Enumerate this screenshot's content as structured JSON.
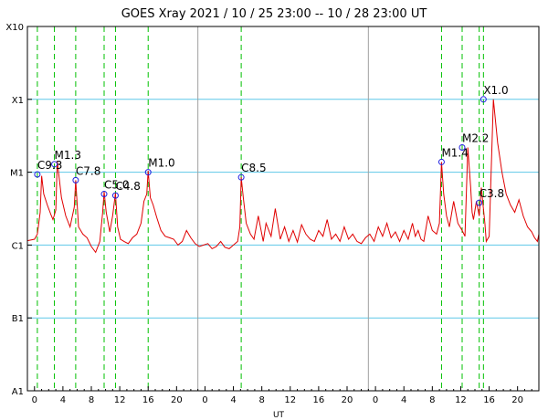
{
  "chart_data": {
    "type": "line",
    "title": "GOES Xray   2021 / 10 / 25   23:00 -- 10 / 28   23:00   UT",
    "xlabel": "UT",
    "ylabel": "",
    "x_tick_labels": [
      "0",
      "4",
      "8",
      "12",
      "16",
      "20",
      "0",
      "4",
      "8",
      "12",
      "16",
      "20",
      "0",
      "4",
      "8",
      "12",
      "16",
      "20"
    ],
    "x_range_hours": [
      -1,
      71
    ],
    "day_boundaries_hours": [
      23,
      47
    ],
    "y_tick_labels": [
      "X10",
      "X1",
      "M1",
      "C1",
      "B1",
      "A1"
    ],
    "y_scale": "log",
    "ylim_class": [
      "A1",
      "X10"
    ],
    "grid": true,
    "series": [
      {
        "x": [
          -1,
          0,
          0.4,
          0.8,
          1.0,
          1.3,
          1.8,
          2.3,
          2.6,
          3.0,
          3.2,
          3.8,
          4.4,
          5.0,
          5.6,
          5.8,
          6.2,
          6.8,
          7.4,
          8.0,
          8.6,
          9.2,
          9.6,
          9.8,
          10.1,
          10.6,
          11.0,
          11.4,
          11.7,
          12.1,
          12.6,
          13.2,
          13.8,
          14.4,
          15.0,
          15.4,
          15.8,
          16.0,
          16.3,
          16.7,
          17.2,
          17.8,
          18.4,
          19.0,
          19.6,
          20.2,
          20.8,
          21.4,
          22.0,
          22.6,
          23.2,
          23.8,
          24.4,
          25.0,
          25.6,
          26.2,
          26.8,
          27.4,
          28.0,
          28.6,
          28.9,
          29.1,
          29.4,
          29.8,
          30.4,
          30.9,
          31.5,
          32.2,
          32.6,
          33.3,
          33.9,
          34.6,
          35.2,
          35.8,
          36.4,
          37.0,
          37.6,
          38.2,
          38.8,
          39.4,
          40.0,
          40.6,
          41.2,
          41.8,
          42.4,
          43.0,
          43.6,
          44.2,
          44.8,
          45.4,
          46.0,
          46.6,
          47.2,
          47.8,
          48.4,
          49.0,
          49.6,
          50.2,
          50.8,
          51.4,
          52.0,
          52.6,
          53.2,
          53.6,
          54.0,
          54.4,
          54.8,
          55.4,
          56.0,
          56.6,
          57.0,
          57.3,
          57.6,
          58.0,
          58.4,
          59.0,
          59.6,
          60.2,
          60.6,
          61.0,
          61.4,
          61.6,
          61.8,
          62.2,
          62.6,
          62.9,
          63.2,
          63.4,
          63.6,
          64.0,
          64.6,
          65.2,
          65.8,
          66.4,
          67.0,
          67.6,
          68.2,
          68.8,
          69.4,
          70.0,
          70.4,
          70.8,
          71.0
        ],
        "y_log": [
          -5.94,
          -5.92,
          -5.85,
          -5.55,
          -5.05,
          -5.3,
          -5.45,
          -5.58,
          -5.65,
          -5.52,
          -4.85,
          -5.35,
          -5.6,
          -5.75,
          -5.48,
          -5.11,
          -5.75,
          -5.85,
          -5.9,
          -6.02,
          -6.1,
          -5.95,
          -5.55,
          -5.27,
          -5.55,
          -5.82,
          -5.6,
          -5.29,
          -5.75,
          -5.92,
          -5.95,
          -5.98,
          -5.9,
          -5.85,
          -5.7,
          -5.4,
          -5.3,
          -4.98,
          -5.35,
          -5.45,
          -5.62,
          -5.8,
          -5.88,
          -5.9,
          -5.92,
          -6.0,
          -5.95,
          -5.8,
          -5.9,
          -5.98,
          -6.02,
          -6.0,
          -5.98,
          -6.05,
          -6.02,
          -5.95,
          -6.03,
          -6.05,
          -6.0,
          -5.95,
          -5.75,
          -5.07,
          -5.35,
          -5.7,
          -5.85,
          -5.92,
          -5.6,
          -5.95,
          -5.7,
          -5.88,
          -5.5,
          -5.92,
          -5.75,
          -5.95,
          -5.8,
          -5.96,
          -5.72,
          -5.85,
          -5.92,
          -5.95,
          -5.8,
          -5.88,
          -5.65,
          -5.92,
          -5.85,
          -5.95,
          -5.75,
          -5.92,
          -5.85,
          -5.95,
          -5.98,
          -5.9,
          -5.85,
          -5.95,
          -5.75,
          -5.88,
          -5.7,
          -5.9,
          -5.82,
          -5.95,
          -5.8,
          -5.92,
          -5.7,
          -5.88,
          -5.8,
          -5.92,
          -5.95,
          -5.6,
          -5.8,
          -5.85,
          -5.7,
          -4.86,
          -5.3,
          -5.6,
          -5.75,
          -5.4,
          -5.7,
          -5.8,
          -5.88,
          -4.66,
          -5.2,
          -5.55,
          -5.65,
          -5.4,
          -5.6,
          -5.21,
          -5.5,
          -5.7,
          -5.95,
          -5.88,
          -4.0,
          -4.6,
          -5.0,
          -5.3,
          -5.45,
          -5.55,
          -5.38,
          -5.6,
          -5.75,
          -5.82,
          -5.9,
          -5.95,
          -5.85
        ]
      }
    ],
    "flare_markers": [
      {
        "label": "C9.3",
        "x": 0.4,
        "y_log": -5.03
      },
      {
        "label": "M1.3",
        "x": 2.8,
        "y_log": -4.89
      },
      {
        "label": "C7.8",
        "x": 5.8,
        "y_log": -5.11
      },
      {
        "label": "C5.0",
        "x": 9.8,
        "y_log": -5.3
      },
      {
        "label": "C4.8",
        "x": 11.4,
        "y_log": -5.32
      },
      {
        "label": "M1.0",
        "x": 16.0,
        "y_log": -5.0
      },
      {
        "label": "C8.5",
        "x": 29.1,
        "y_log": -5.07
      },
      {
        "label": "M1.4",
        "x": 57.3,
        "y_log": -4.86
      },
      {
        "label": "M2.2",
        "x": 60.2,
        "y_log": -4.66
      },
      {
        "label": "C3.8",
        "x": 62.6,
        "y_log": -5.42
      },
      {
        "label": "X1.0",
        "x": 63.2,
        "y_log": -4.0
      }
    ],
    "colors": {
      "flux_line": "#e00000",
      "flare_marker": "#2020e0",
      "flare_dashes": "#00c000",
      "grid_horizontal": "#5fc8e8",
      "day_lines": "#a0a0a0"
    }
  }
}
